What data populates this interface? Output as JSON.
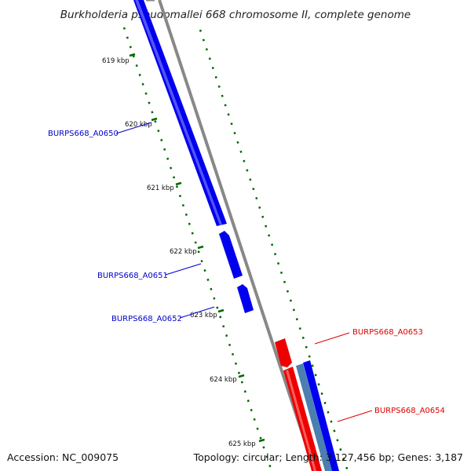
{
  "title": "Burkholderia pseudomallei 668 chromosome II, complete genome",
  "footer": {
    "accession": "Accession: NC_009075",
    "info": "Topology: circular; Length: 3,127,456 bp; Genes: 3,187"
  },
  "colors": {
    "forward": "#0000ee",
    "reverse": "#ee0000",
    "ruler": "#006600",
    "backbone": "#888888",
    "steel": "#4a7fb0"
  },
  "ticks": [
    {
      "label": "619 kbp"
    },
    {
      "label": "620 kbp"
    },
    {
      "label": "621 kbp"
    },
    {
      "label": "622 kbp"
    },
    {
      "label": "623 kbp"
    },
    {
      "label": "624 kbp"
    },
    {
      "label": "625 kbp"
    }
  ],
  "genes": [
    {
      "name": "BURPS668_A0650",
      "strand": "forward"
    },
    {
      "name": "BURPS668_A0651",
      "strand": "forward"
    },
    {
      "name": "BURPS668_A0652",
      "strand": "forward"
    },
    {
      "name": "BURPS668_A0653",
      "strand": "reverse"
    },
    {
      "name": "BURPS668_A0654",
      "strand": "reverse"
    }
  ]
}
